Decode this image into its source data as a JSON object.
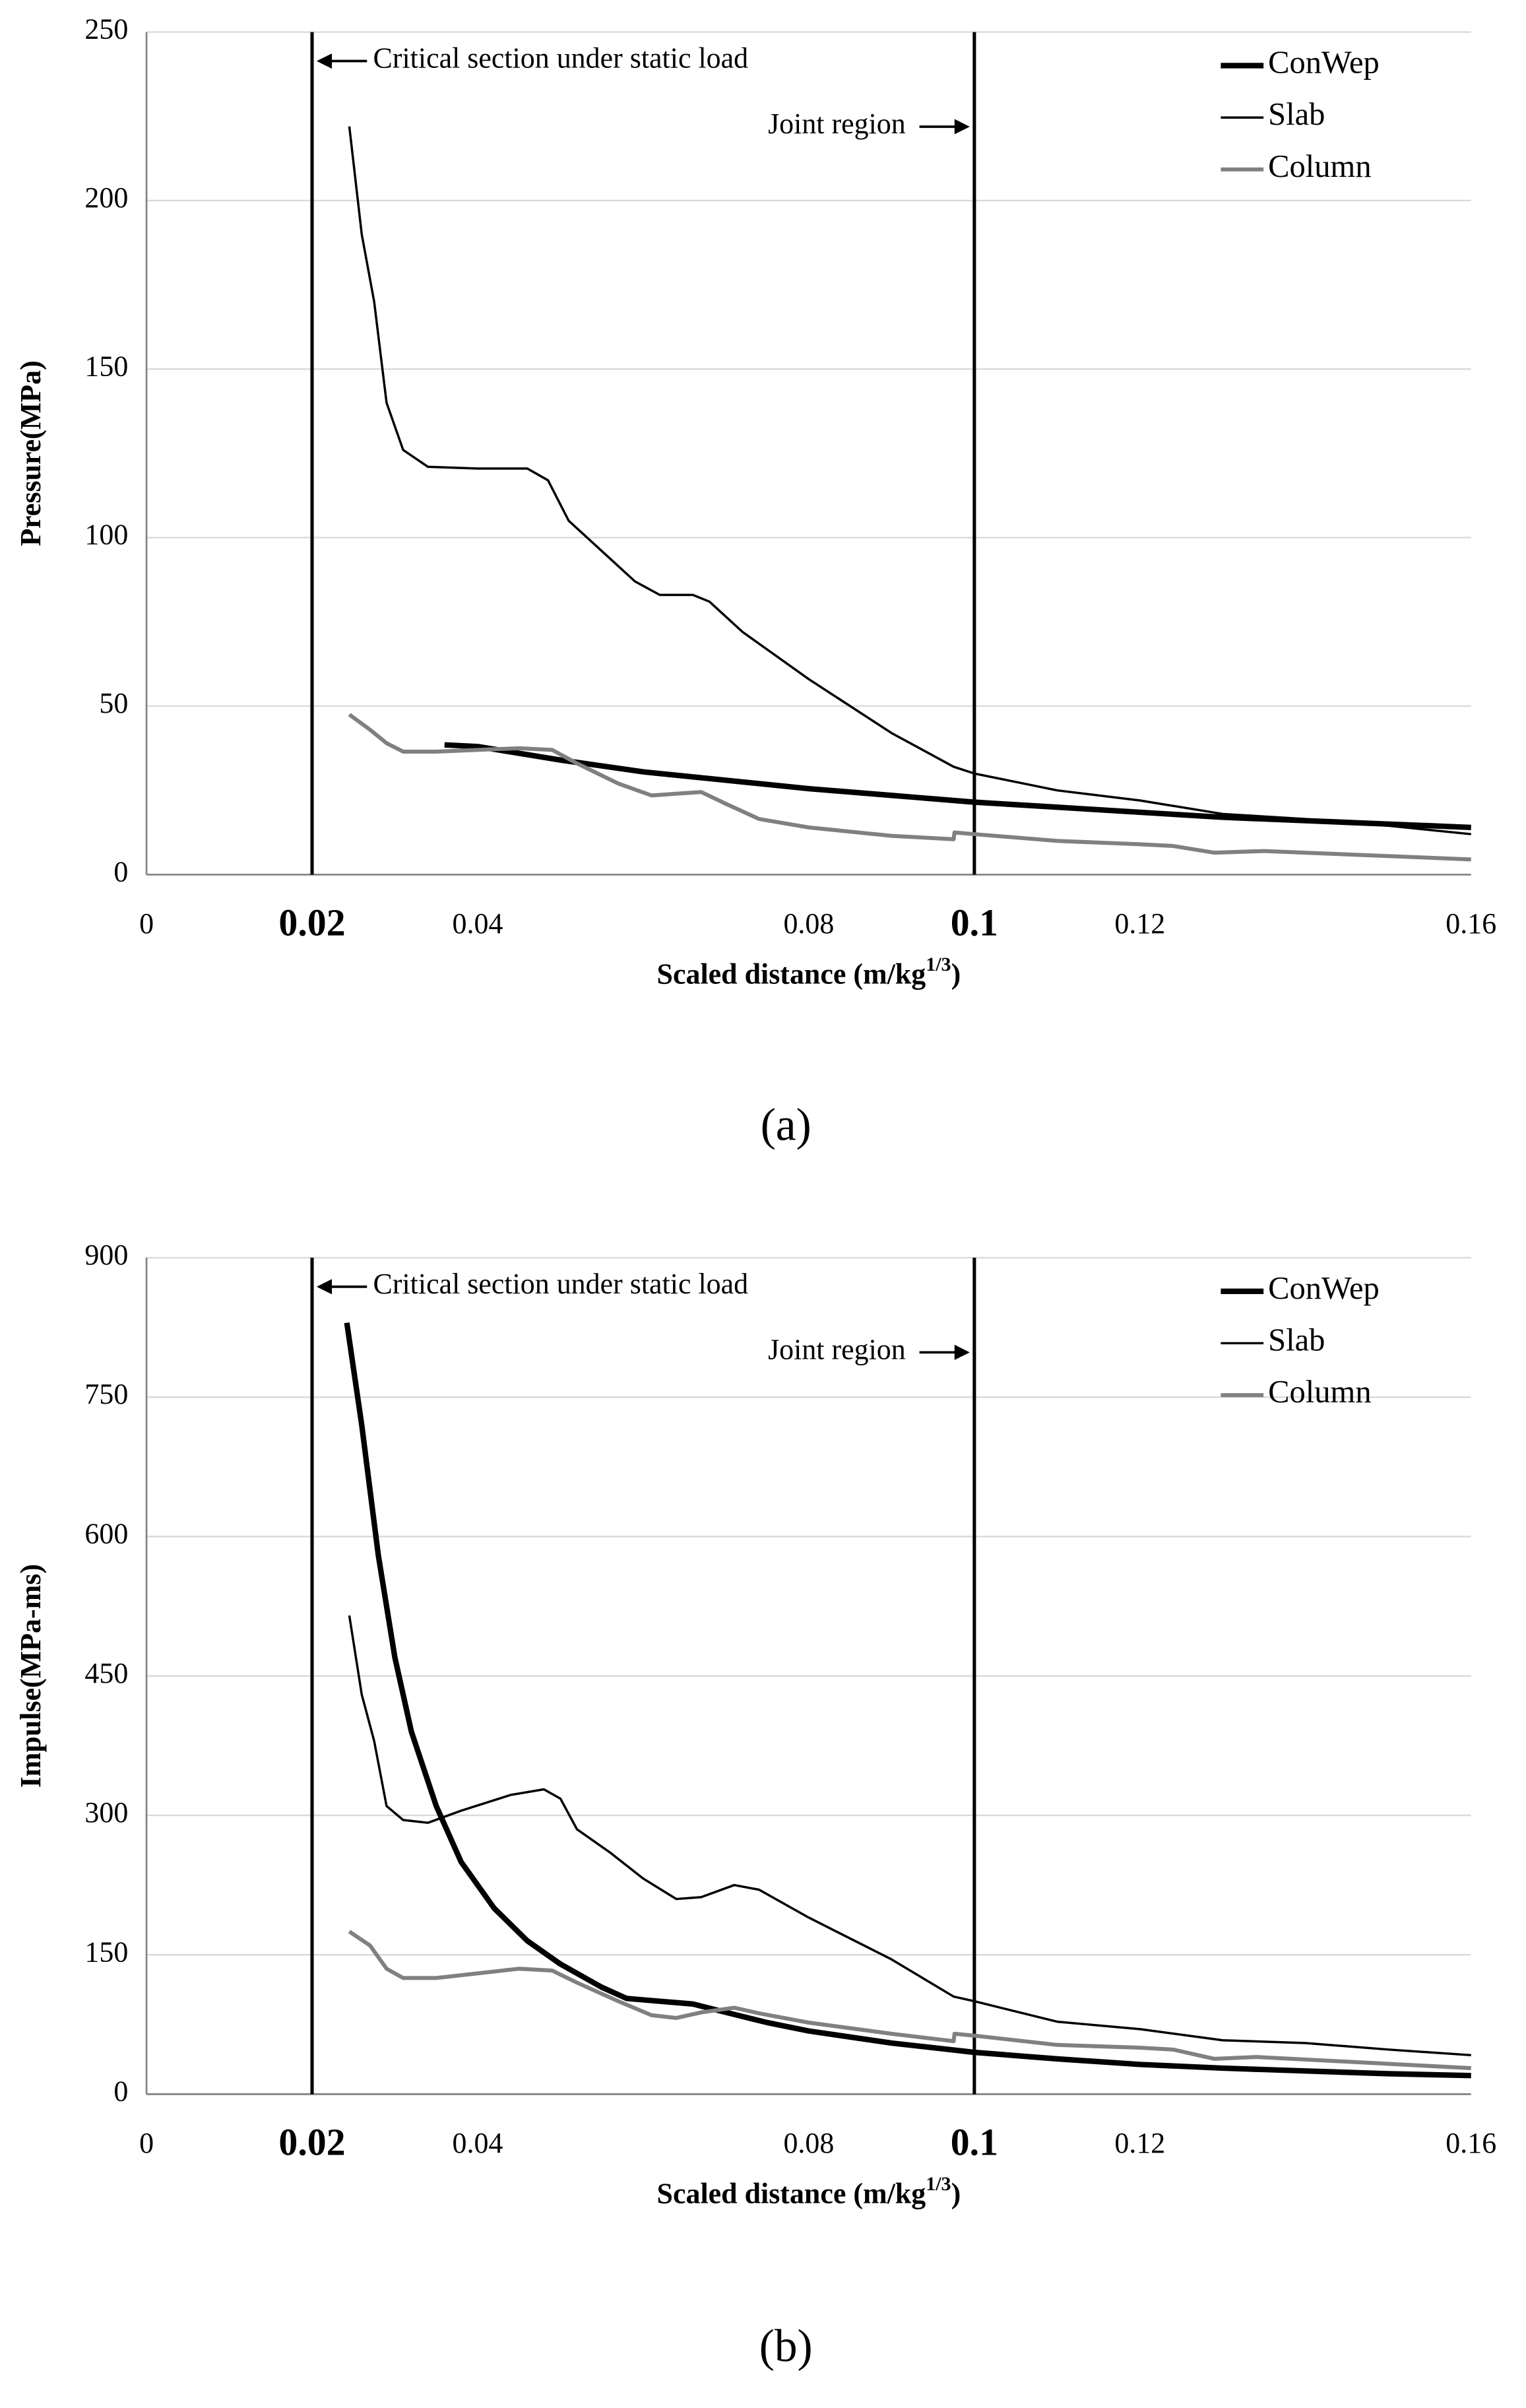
{
  "chart_data": [
    {
      "type": "line",
      "caption": "(a)",
      "ylabel": "Pressure(MPa)",
      "xlabel": {
        "text": "Scaled distance (m/kg",
        "superscript": "1/3",
        "close": ")"
      },
      "xlim": [
        0,
        0.16
      ],
      "xticks": [
        0,
        0.02,
        0.04,
        0.08,
        0.1,
        0.12,
        0.16
      ],
      "ylim": [
        0,
        250
      ],
      "yticks": [
        0,
        50,
        100,
        150,
        200,
        250
      ],
      "grid": true,
      "legend": "upper right",
      "vlines": [
        {
          "x": 0.02,
          "label": "Critical section under static load"
        },
        {
          "x": 0.1,
          "label": "Joint region"
        }
      ],
      "series": [
        {
          "name": "ConWep",
          "color": "#000000",
          "emphasis": "bold",
          "x": [
            0.036,
            0.04,
            0.05,
            0.06,
            0.07,
            0.08,
            0.09,
            0.1,
            0.11,
            0.12,
            0.13,
            0.14,
            0.15,
            0.16
          ],
          "values": [
            38.5,
            38,
            34,
            30.5,
            28,
            25.5,
            23.5,
            21.5,
            20,
            18.5,
            17,
            16,
            15,
            14
          ]
        },
        {
          "name": "Slab",
          "color": "#000000",
          "x": [
            0.0245,
            0.026,
            0.0275,
            0.029,
            0.031,
            0.034,
            0.04,
            0.046,
            0.0485,
            0.051,
            0.055,
            0.059,
            0.062,
            0.066,
            0.068,
            0.072,
            0.08,
            0.09,
            0.0975,
            0.1,
            0.11,
            0.12,
            0.13,
            0.14,
            0.15,
            0.16
          ],
          "values": [
            222,
            190,
            170,
            140,
            126,
            121,
            120.5,
            120.5,
            117,
            105,
            96,
            87,
            83,
            83,
            81,
            72,
            58,
            42,
            32,
            30,
            25,
            22,
            18,
            16.5,
            14.5,
            12
          ]
        },
        {
          "name": "Column",
          "color": "#808080",
          "x": [
            0.0245,
            0.027,
            0.029,
            0.031,
            0.035,
            0.04,
            0.045,
            0.049,
            0.052,
            0.057,
            0.061,
            0.064,
            0.067,
            0.07,
            0.074,
            0.08,
            0.09,
            0.0975,
            0.0976,
            0.1,
            0.11,
            0.12,
            0.124,
            0.129,
            0.135,
            0.145,
            0.16
          ],
          "values": [
            47.5,
            43,
            39,
            36.5,
            36.5,
            37,
            37.5,
            37,
            33,
            27,
            23.5,
            24,
            24.5,
            21,
            16.5,
            14,
            11.5,
            10.5,
            12.5,
            12,
            10,
            9,
            8.5,
            6.5,
            7,
            6,
            4.5
          ]
        }
      ]
    },
    {
      "type": "line",
      "caption": "(b)",
      "ylabel": "Impulse(MPa-ms)",
      "xlabel": {
        "text": "Scaled distance (m/kg",
        "superscript": "1/3",
        "close": ")"
      },
      "xlim": [
        0,
        0.16
      ],
      "xticks": [
        0,
        0.02,
        0.04,
        0.08,
        0.1,
        0.12,
        0.16
      ],
      "ylim": [
        0,
        900
      ],
      "yticks": [
        0,
        150,
        300,
        450,
        600,
        750,
        900
      ],
      "grid": true,
      "legend": "upper right",
      "vlines": [
        {
          "x": 0.02,
          "label": "Critical section under static load"
        },
        {
          "x": 0.1,
          "label": "Joint region"
        }
      ],
      "series": [
        {
          "name": "ConWep",
          "color": "#000000",
          "emphasis": "bold",
          "x": [
            0.0242,
            0.026,
            0.028,
            0.03,
            0.032,
            0.035,
            0.038,
            0.042,
            0.046,
            0.05,
            0.055,
            0.058,
            0.062,
            0.066,
            0.07,
            0.075,
            0.08,
            0.09,
            0.1,
            0.11,
            0.12,
            0.13,
            0.14,
            0.15,
            0.16
          ],
          "values": [
            830,
            720,
            580,
            470,
            390,
            310,
            250,
            200,
            165,
            140,
            115,
            103,
            100,
            97,
            88,
            77,
            68,
            55,
            45,
            38,
            32,
            28,
            25,
            22,
            20
          ]
        },
        {
          "name": "Slab",
          "color": "#000000",
          "x": [
            0.0245,
            0.026,
            0.0275,
            0.029,
            0.031,
            0.034,
            0.038,
            0.044,
            0.048,
            0.05,
            0.052,
            0.056,
            0.06,
            0.064,
            0.067,
            0.071,
            0.074,
            0.08,
            0.09,
            0.0975,
            0.1,
            0.11,
            0.12,
            0.13,
            0.14,
            0.15,
            0.16
          ],
          "values": [
            515,
            430,
            380,
            310,
            295,
            292,
            305,
            322,
            328,
            318,
            285,
            260,
            232,
            210,
            212,
            225,
            220,
            190,
            145,
            105,
            100,
            78,
            70,
            58,
            55,
            48,
            42
          ]
        },
        {
          "name": "Column",
          "color": "#808080",
          "x": [
            0.0245,
            0.027,
            0.029,
            0.031,
            0.035,
            0.04,
            0.045,
            0.049,
            0.052,
            0.057,
            0.061,
            0.064,
            0.067,
            0.071,
            0.074,
            0.08,
            0.09,
            0.0975,
            0.0976,
            0.1,
            0.11,
            0.12,
            0.124,
            0.129,
            0.134,
            0.145,
            0.16
          ],
          "values": [
            175,
            160,
            135,
            125,
            125,
            130,
            135,
            133,
            120,
            100,
            85,
            82,
            88,
            93,
            87,
            77,
            65,
            57,
            65,
            63,
            53,
            50,
            48,
            38,
            40,
            35,
            28
          ]
        }
      ]
    }
  ]
}
